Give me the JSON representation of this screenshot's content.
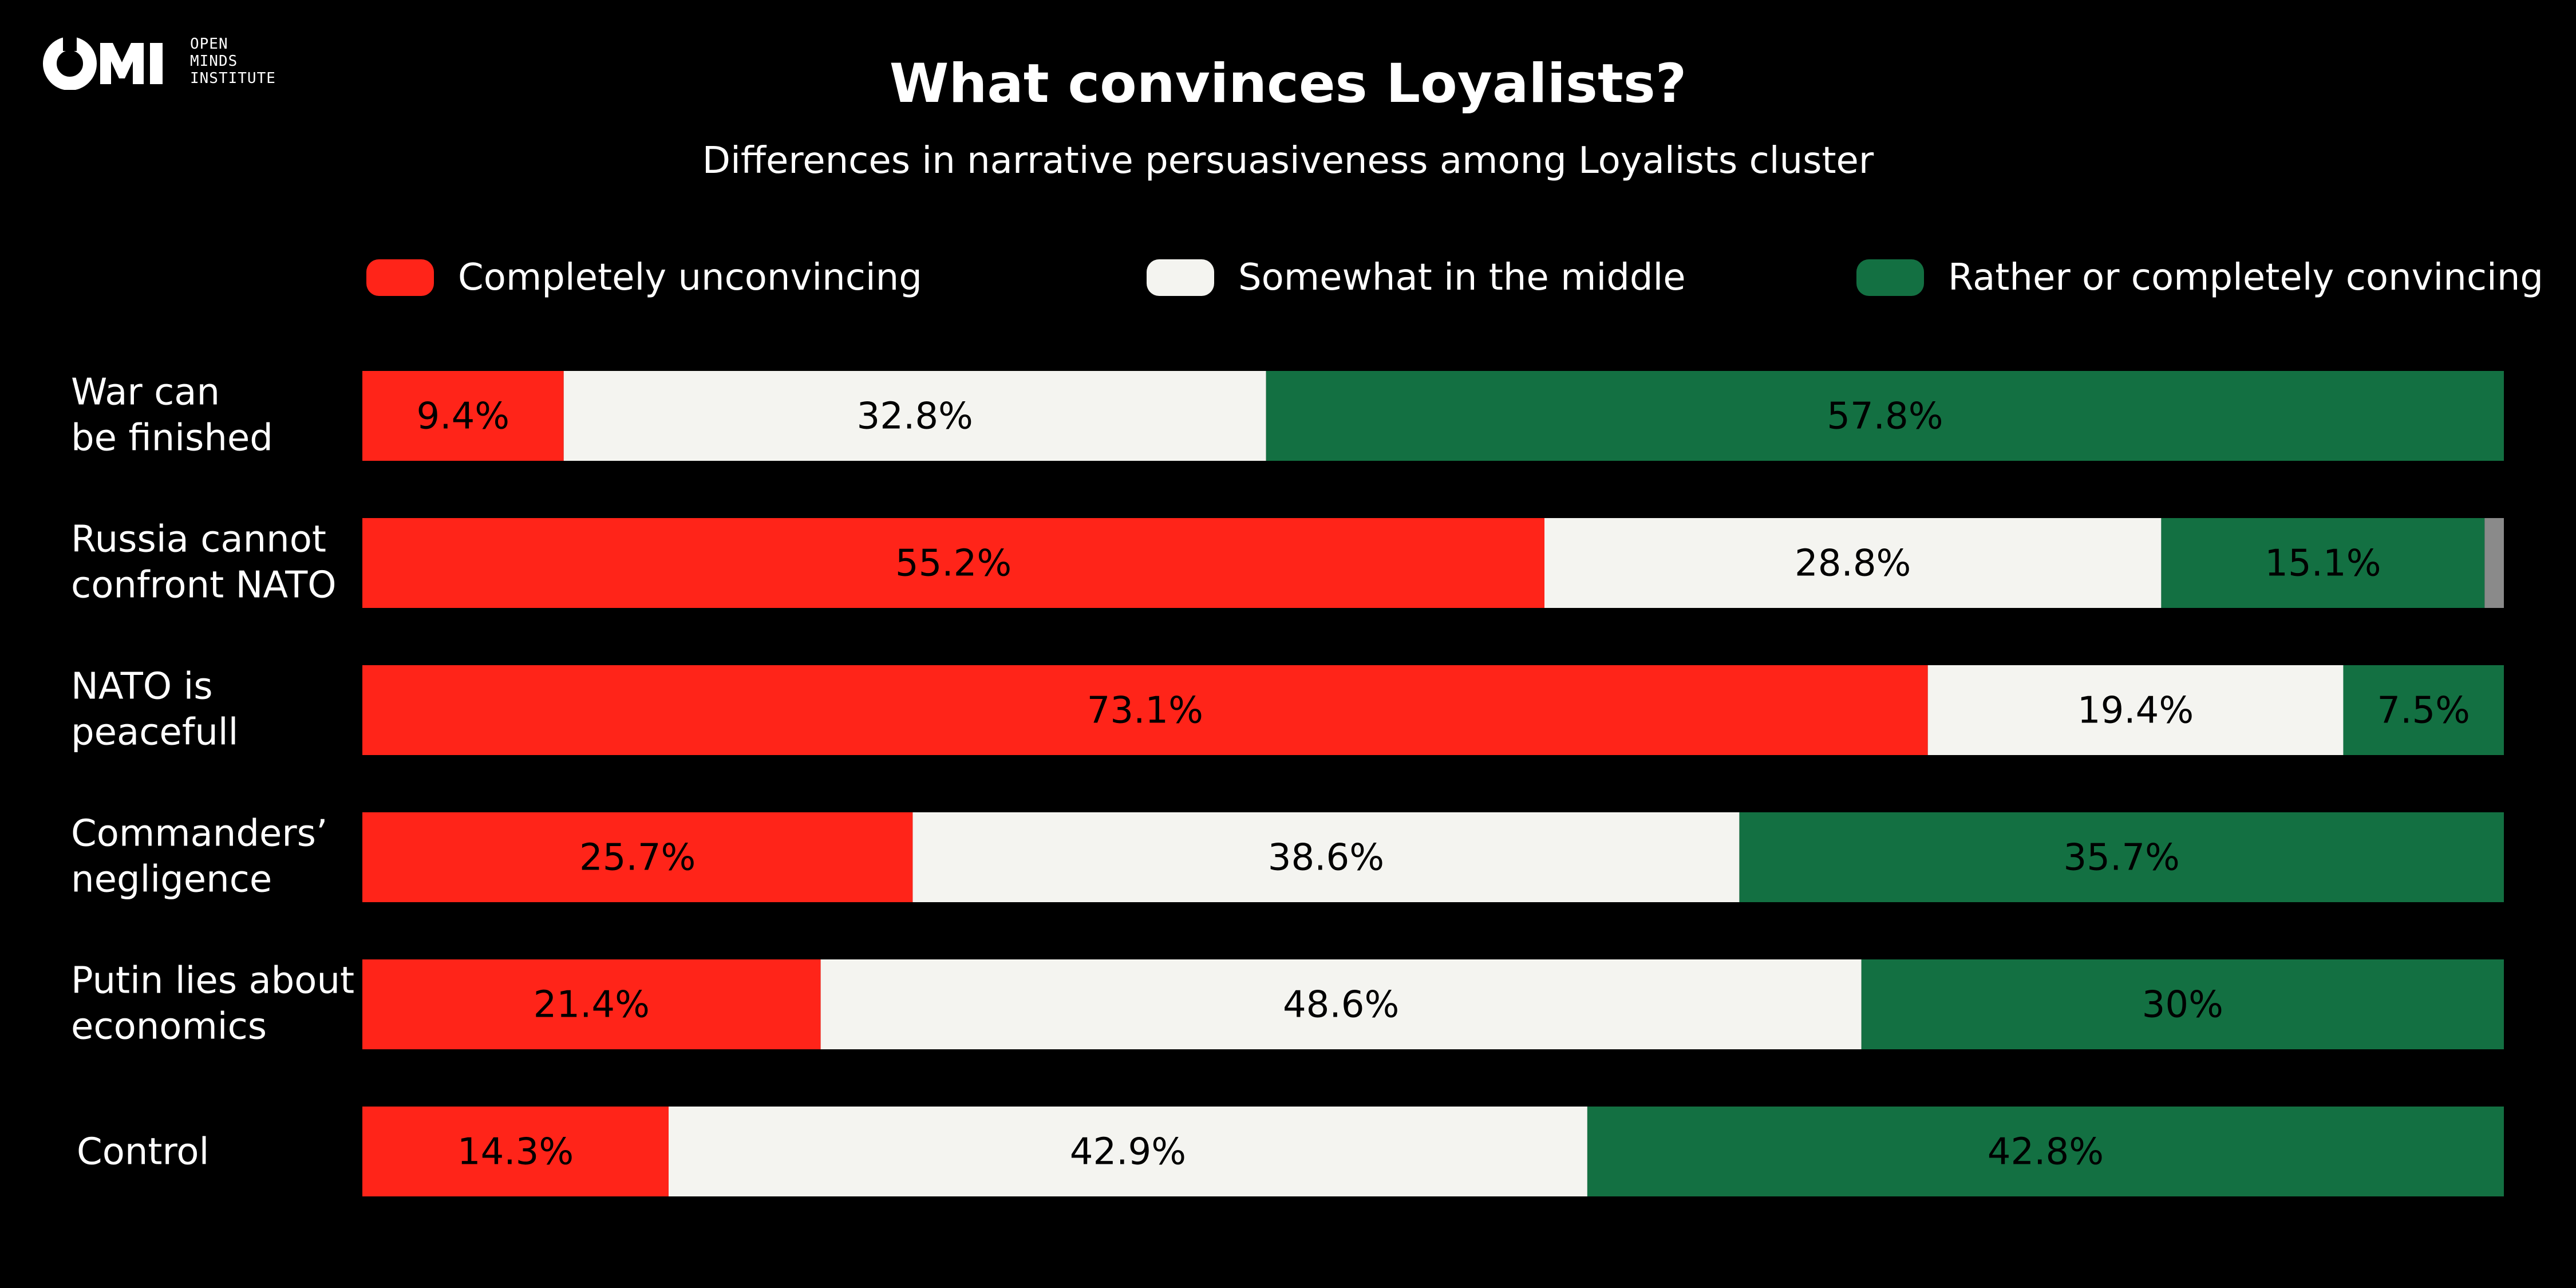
{
  "logo": {
    "mark": "OMI",
    "text_lines": [
      "OPEN",
      "MINDS",
      "INSTITUTE"
    ]
  },
  "title": "What convinces Loyalists?",
  "subtitle": "Differences in narrative persuasiveness among Loyalists cluster",
  "legend": [
    {
      "label": "Completely unconvincing",
      "color": "#ff2419"
    },
    {
      "label": "Somewhat in the middle",
      "color": "#f4f4f0"
    },
    {
      "label": "Rather or completely convincing",
      "color": "#137042"
    }
  ],
  "chart_data": {
    "type": "bar",
    "orientation": "horizontal",
    "stacked": true,
    "categories": [
      [
        "War can",
        "be finished"
      ],
      [
        "Russia cannot",
        "confront NATO"
      ],
      [
        "NATO is",
        "peacefull"
      ],
      [
        "Commanders’",
        "negligence"
      ],
      [
        "Putin lies about",
        "economics"
      ],
      [
        "Control"
      ]
    ],
    "series": [
      {
        "name": "Completely unconvincing",
        "color": "#ff2419",
        "values": [
          9.4,
          55.2,
          73.1,
          25.7,
          21.4,
          14.3
        ],
        "labels": [
          "9.4%",
          "55.2%",
          "73.1%",
          "25.7%",
          "21.4%",
          "14.3%"
        ]
      },
      {
        "name": "Somewhat in the middle",
        "color": "#f4f4f0",
        "values": [
          32.8,
          28.8,
          19.4,
          38.6,
          48.6,
          42.9
        ],
        "labels": [
          "32.8%",
          "28.8%",
          "19.4%",
          "38.6%",
          "48.6%",
          "42.9%"
        ]
      },
      {
        "name": "Rather or completely convincing",
        "color": "#137042",
        "values": [
          57.8,
          15.1,
          7.5,
          35.7,
          30.0,
          42.8
        ],
        "labels": [
          "57.8%",
          "15.1%",
          "7.5%",
          "35.7%",
          "30%",
          "42.8%"
        ]
      },
      {
        "name": "",
        "color": "#8a8a8a",
        "values": [
          0,
          0.9,
          0,
          0,
          0,
          0
        ],
        "labels": [
          "",
          "",
          "",
          "",
          "",
          ""
        ]
      }
    ],
    "xlim": [
      0,
      100
    ],
    "grid": false,
    "legend_position": "top"
  }
}
